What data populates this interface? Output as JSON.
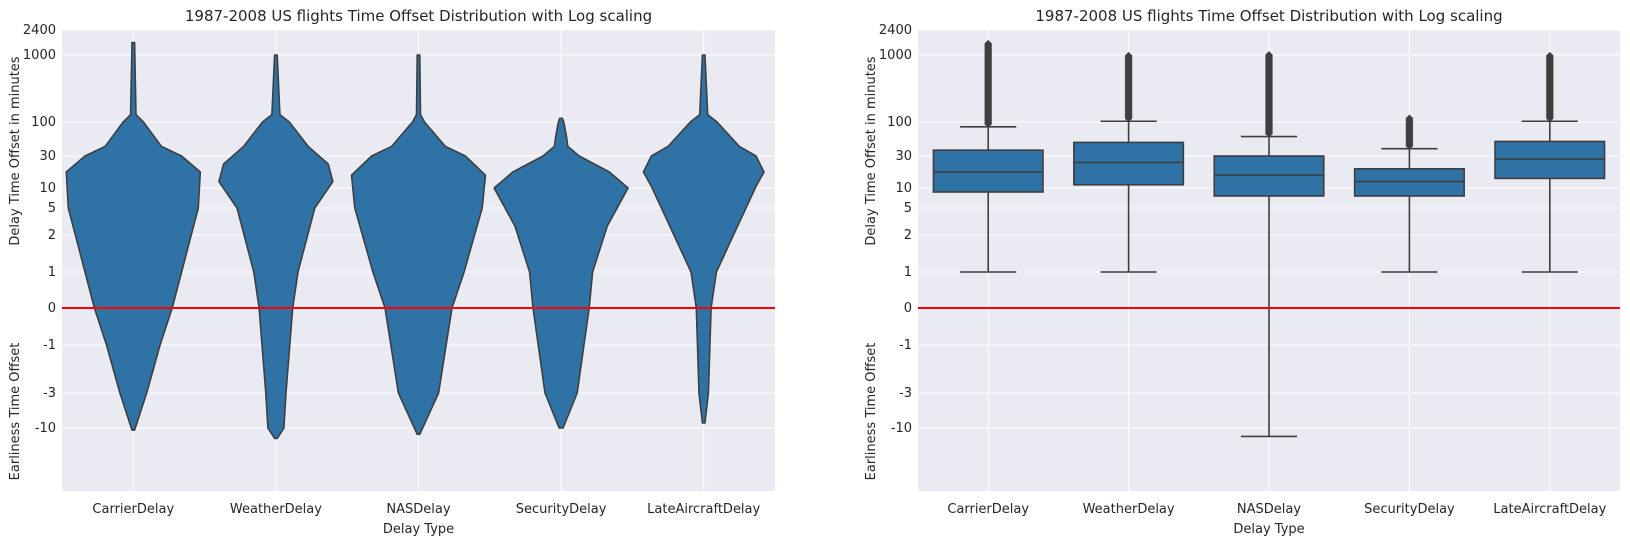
{
  "chart_data": [
    {
      "type": "violin",
      "title": "1987-2008 US flights Time Offset Distribution with Log scaling",
      "xlabel": "Delay Type",
      "ylabel_delay": "Delay Time Offset in minutes",
      "ylabel_earliness": "Earliness Time Offset",
      "y_scale": "symmetric log",
      "y_tick_labels": [
        "2400",
        "1000",
        "100",
        "30",
        "10",
        "5",
        "2",
        "1",
        "0",
        "-1",
        "-3",
        "-10"
      ],
      "y_tick_values": [
        2400,
        1000,
        100,
        30,
        10,
        5,
        2,
        1,
        0,
        -1,
        -3,
        -10
      ],
      "categories": [
        "CarrierDelay",
        "WeatherDelay",
        "NASDelay",
        "SecurityDelay",
        "LateAircraftDelay"
      ],
      "grid": true,
      "color": "#2e72a6",
      "reference_line": {
        "y": 0,
        "color": "#ff0000"
      },
      "violins": [
        {
          "name": "CarrierDelay",
          "min": -11,
          "max": 1700,
          "profile": [
            [
              -11,
              0.02
            ],
            [
              -3,
              0.2
            ],
            [
              -1,
              0.4
            ],
            [
              0,
              0.58
            ],
            [
              1,
              0.72
            ],
            [
              5,
              0.97
            ],
            [
              20,
              1.0
            ],
            [
              30,
              0.72
            ],
            [
              50,
              0.42
            ],
            [
              100,
              0.15
            ],
            [
              200,
              0.04
            ],
            [
              1700,
              0.02
            ]
          ]
        },
        {
          "name": "WeatherDelay",
          "min": -15,
          "max": 1000,
          "profile": [
            [
              -15,
              0.02
            ],
            [
              -10,
              0.12
            ],
            [
              -3,
              0.15
            ],
            [
              0,
              0.25
            ],
            [
              1,
              0.33
            ],
            [
              5,
              0.58
            ],
            [
              14,
              0.85
            ],
            [
              25,
              0.78
            ],
            [
              50,
              0.48
            ],
            [
              100,
              0.2
            ],
            [
              200,
              0.06
            ],
            [
              1000,
              0.02
            ]
          ]
        },
        {
          "name": "NASDelay",
          "min": -13,
          "max": 1000,
          "profile": [
            [
              -13,
              0.02
            ],
            [
              -3,
              0.3
            ],
            [
              0,
              0.5
            ],
            [
              1,
              0.68
            ],
            [
              5,
              0.95
            ],
            [
              18,
              1.0
            ],
            [
              30,
              0.7
            ],
            [
              50,
              0.4
            ],
            [
              100,
              0.09
            ],
            [
              200,
              0.03
            ],
            [
              1000,
              0.02
            ]
          ]
        },
        {
          "name": "SecurityDelay",
          "min": -10,
          "max": 150,
          "profile": [
            [
              -10,
              0.03
            ],
            [
              -3,
              0.24
            ],
            [
              0,
              0.42
            ],
            [
              1,
              0.47
            ],
            [
              3,
              0.69
            ],
            [
              10,
              1.0
            ],
            [
              20,
              0.72
            ],
            [
              30,
              0.27
            ],
            [
              50,
              0.1
            ],
            [
              70,
              0.08
            ],
            [
              100,
              0.04
            ],
            [
              150,
              0.02
            ]
          ]
        },
        {
          "name": "LateAircraftDelay",
          "min": -9,
          "max": 1000,
          "profile": [
            [
              -9,
              0.02
            ],
            [
              -3,
              0.07
            ],
            [
              0,
              0.11
            ],
            [
              1,
              0.19
            ],
            [
              11,
              0.78
            ],
            [
              20,
              0.9
            ],
            [
              30,
              0.78
            ],
            [
              50,
              0.53
            ],
            [
              100,
              0.2
            ],
            [
              200,
              0.06
            ],
            [
              1000,
              0.02
            ]
          ]
        }
      ]
    },
    {
      "type": "box",
      "title": "1987-2008 US flights Time Offset Distribution with Log scaling",
      "xlabel": "Delay Type",
      "ylabel_delay": "Delay Time Offset in minutes",
      "ylabel_earliness": "Earliness Time Offset",
      "y_scale": "symmetric log",
      "y_tick_labels": [
        "2400",
        "1000",
        "100",
        "30",
        "10",
        "5",
        "2",
        "1",
        "0",
        "-1",
        "-3",
        "-10"
      ],
      "y_tick_values": [
        2400,
        1000,
        100,
        30,
        10,
        5,
        2,
        1,
        0,
        -1,
        -3,
        -10
      ],
      "categories": [
        "CarrierDelay",
        "WeatherDelay",
        "NASDelay",
        "SecurityDelay",
        "LateAircraftDelay"
      ],
      "grid": true,
      "color": "#2e72a6",
      "reference_line": {
        "y": 0,
        "color": "#ff0000"
      },
      "boxes": [
        {
          "name": "CarrierDelay",
          "whisker_low": 1,
          "q1": 9,
          "median": 20,
          "q3": 42,
          "whisker_high": 90,
          "outliers_from": 90,
          "outliers_to": 1700
        },
        {
          "name": "WeatherDelay",
          "whisker_low": 1,
          "q1": 12,
          "median": 26,
          "q3": 58,
          "whisker_high": 110,
          "outliers_from": 110,
          "outliers_to": 1000
        },
        {
          "name": "NASDelay",
          "whisker_low": -14,
          "q1": 8,
          "median": 18,
          "q3": 30,
          "whisker_high": 70,
          "outliers_from": 70,
          "outliers_to": 1000
        },
        {
          "name": "SecurityDelay",
          "whisker_low": 1,
          "q1": 8,
          "median": 14,
          "q3": 22,
          "whisker_high": 45,
          "outliers_from": 45,
          "outliers_to": 150
        },
        {
          "name": "LateAircraftDelay",
          "whisker_low": 1,
          "q1": 16,
          "median": 28,
          "q3": 60,
          "whisker_high": 110,
          "outliers_from": 110,
          "outliers_to": 1000
        }
      ]
    }
  ]
}
